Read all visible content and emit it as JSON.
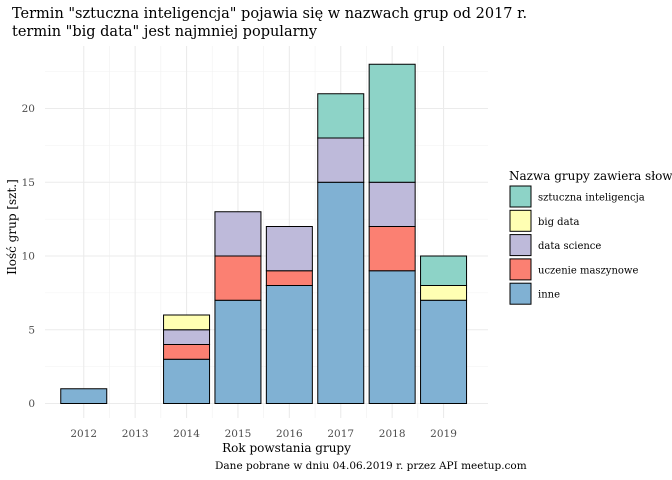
{
  "chart_data": {
    "type": "bar",
    "stacked": true,
    "title_lines": [
      "Termin \"sztuczna inteligencja\" pojawia się w nazwach grup od 2017 r.",
      "termin \"big data\" jest najmniej popularny"
    ],
    "xlabel": "Rok powstania grupy",
    "ylabel": "Ilość grup [szt.]",
    "caption": "Dane pobrane w dniu 04.06.2019 r. przez API meetup.com",
    "categories": [
      "2012",
      "2013",
      "2014",
      "2015",
      "2016",
      "2017",
      "2018",
      "2019"
    ],
    "ylim": [
      0,
      23
    ],
    "yticks": [
      0,
      5,
      10,
      15,
      20
    ],
    "grid": true,
    "legend": {
      "title": "Nazwa grupy zawiera słowa:",
      "placement": "right"
    },
    "series": [
      {
        "name": "inne",
        "color": "#80B1D3",
        "values": [
          1,
          0,
          3,
          7,
          8,
          15,
          9,
          7
        ]
      },
      {
        "name": "uczenie maszynowe",
        "color": "#FB8072",
        "values": [
          0,
          0,
          1,
          3,
          1,
          0,
          3,
          0
        ]
      },
      {
        "name": "data science",
        "color": "#BEBADA",
        "values": [
          0,
          0,
          1,
          3,
          3,
          3,
          3,
          0
        ]
      },
      {
        "name": "big data",
        "color": "#FFFFB3",
        "values": [
          0,
          0,
          1,
          0,
          0,
          0,
          0,
          1
        ]
      },
      {
        "name": "sztuczna inteligencja",
        "color": "#8DD3C7",
        "values": [
          0,
          0,
          0,
          0,
          0,
          3,
          8,
          2
        ]
      }
    ],
    "legend_order": [
      "sztuczna inteligencja",
      "big data",
      "data science",
      "uczenie maszynowe",
      "inne"
    ]
  }
}
